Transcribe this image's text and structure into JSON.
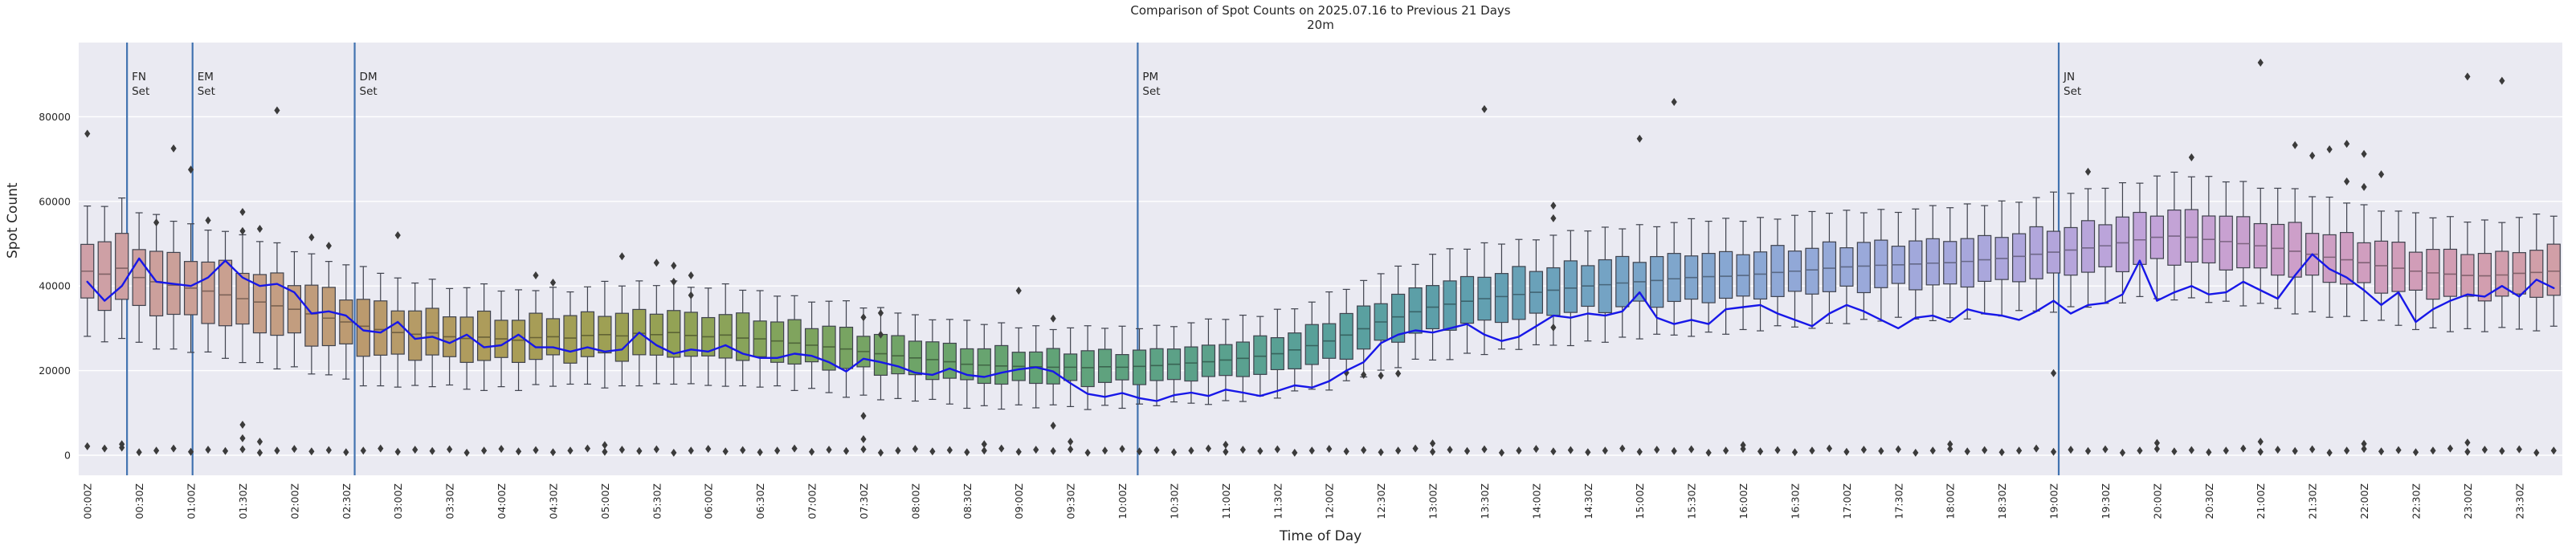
{
  "header": {
    "title": "Comparison of Spot Counts on 2025.07.16 to Previous 21 Days",
    "subtitle": "20m"
  },
  "axes": {
    "y_label": "Spot Count",
    "x_label": "Time of Day",
    "y_tick_labels": [
      "0",
      "20000",
      "40000",
      "60000",
      "80000"
    ],
    "y_tick_values": [
      0,
      20000,
      40000,
      60000,
      80000
    ],
    "x_tick_labels": [
      "00:00Z",
      "00:30Z",
      "01:00Z",
      "01:30Z",
      "02:00Z",
      "02:30Z",
      "03:00Z",
      "03:30Z",
      "04:00Z",
      "04:30Z",
      "05:00Z",
      "05:30Z",
      "06:00Z",
      "06:30Z",
      "07:00Z",
      "07:30Z",
      "08:00Z",
      "08:30Z",
      "09:00Z",
      "09:30Z",
      "10:00Z",
      "10:30Z",
      "11:00Z",
      "11:30Z",
      "12:00Z",
      "12:30Z",
      "13:00Z",
      "13:30Z",
      "14:00Z",
      "14:30Z",
      "15:00Z",
      "15:30Z",
      "16:00Z",
      "16:30Z",
      "17:00Z",
      "17:30Z",
      "18:00Z",
      "18:30Z",
      "19:00Z",
      "19:30Z",
      "20:00Z",
      "20:30Z",
      "21:00Z",
      "21:30Z",
      "22:00Z",
      "22:30Z",
      "23:00Z",
      "23:30Z"
    ]
  },
  "events": [
    {
      "line1": "FN",
      "line2": "Set",
      "slot": 2.3
    },
    {
      "line1": "EM",
      "line2": "Set",
      "slot": 6.1
    },
    {
      "line1": "DM",
      "line2": "Set",
      "slot": 15.5
    },
    {
      "line1": "PM",
      "line2": "Set",
      "slot": 60.9
    },
    {
      "line1": "JN",
      "line2": "Set",
      "slot": 114.3
    }
  ],
  "colors": {
    "figure_bg": "#ffffff",
    "plot_bg": "#eaeaf2",
    "grid": "#ffffff",
    "current_day_line": "#1717e8",
    "event_line": "#4273b0",
    "box_edge": "#3f424d",
    "flier": "#3b3b3b",
    "text": "#262626"
  },
  "chart_data": {
    "type": "boxplot+line",
    "title": "Comparison of Spot Counts on 2025.07.16 to Previous 21 Days",
    "subtitle": "20m",
    "xlabel": "Time of Day",
    "ylabel": "Spot Count",
    "interval_minutes": 10,
    "n_slots": 144,
    "ylim": [
      -5000,
      97500
    ],
    "grid": "horizontal-only",
    "legend": "none",
    "box_fill_palette_stops": [
      [
        0,
        "#cfa0a8"
      ],
      [
        8,
        "#c9a090"
      ],
      [
        16,
        "#bb9a6e"
      ],
      [
        24,
        "#ab9c58"
      ],
      [
        32,
        "#99a153"
      ],
      [
        40,
        "#82a45c"
      ],
      [
        48,
        "#6ea468"
      ],
      [
        56,
        "#61a377"
      ],
      [
        64,
        "#5ba189"
      ],
      [
        72,
        "#58a09b"
      ],
      [
        80,
        "#5f9fae"
      ],
      [
        88,
        "#74a3c4"
      ],
      [
        96,
        "#8aa8d4"
      ],
      [
        104,
        "#9ca9db"
      ],
      [
        112,
        "#aea6dc"
      ],
      [
        120,
        "#c2a3d8"
      ],
      [
        128,
        "#cd9fc9"
      ],
      [
        136,
        "#d29db5"
      ],
      [
        143,
        "#d19fa7"
      ]
    ],
    "current_day_line": [
      41000,
      36500,
      40000,
      46500,
      41000,
      40500,
      40000,
      42000,
      46000,
      42000,
      40000,
      40500,
      38500,
      33500,
      34000,
      33000,
      29500,
      29000,
      31500,
      27500,
      28000,
      26500,
      28500,
      25500,
      26000,
      28500,
      25500,
      25500,
      24500,
      25500,
      24500,
      25000,
      29000,
      26000,
      24000,
      25000,
      24500,
      26000,
      24000,
      23000,
      23000,
      24000,
      23500,
      22000,
      19800,
      22800,
      22000,
      21000,
      19500,
      19000,
      20500,
      19000,
      18500,
      19500,
      20300,
      20800,
      19800,
      17000,
      14500,
      13800,
      14700,
      13500,
      12800,
      14200,
      14800,
      14000,
      15500,
      14800,
      14000,
      15200,
      16500,
      16000,
      17500,
      20000,
      22000,
      26500,
      28500,
      29500,
      29000,
      30000,
      31000,
      28500,
      27000,
      28000,
      30500,
      33000,
      32500,
      33500,
      33000,
      34000,
      38500,
      32500,
      31000,
      32000,
      31000,
      34500,
      35000,
      35500,
      33500,
      32000,
      30500,
      33500,
      35500,
      34000,
      32000,
      30000,
      32500,
      33000,
      31500,
      34500,
      33500,
      33000,
      32000,
      34000,
      36500,
      33500,
      35500,
      36000,
      38000,
      46000,
      36500,
      38500,
      40000,
      38000,
      38500,
      41000,
      39000,
      37000,
      42500,
      47500,
      44000,
      42000,
      39000,
      35500,
      38500,
      31500,
      34500,
      36500,
      38000,
      37500,
      40000,
      37500,
      41500,
      39500
    ],
    "box_median": [
      43500,
      42800,
      44200,
      42000,
      41000,
      40200,
      39500,
      38800,
      37900,
      37000,
      36200,
      35300,
      34500,
      33400,
      32400,
      31500,
      30500,
      29700,
      29000,
      28600,
      28900,
      28000,
      27600,
      27900,
      27500,
      27200,
      27800,
      28000,
      27700,
      28300,
      28500,
      28200,
      28800,
      28500,
      29000,
      28300,
      28000,
      28400,
      27700,
      27500,
      27000,
      26500,
      26000,
      25600,
      25100,
      24500,
      24000,
      23500,
      23000,
      22600,
      22100,
      21500,
      21300,
      21100,
      21000,
      20900,
      20800,
      20800,
      20700,
      20900,
      20800,
      21000,
      21200,
      21500,
      21800,
      22100,
      22500,
      22900,
      23400,
      24000,
      24900,
      25900,
      27000,
      28400,
      29900,
      31500,
      32700,
      33900,
      35000,
      35700,
      36400,
      37000,
      37500,
      38000,
      38500,
      39000,
      39500,
      40000,
      40300,
      40700,
      41000,
      41300,
      41700,
      42000,
      42200,
      42300,
      42500,
      42800,
      43200,
      43500,
      43800,
      44200,
      44500,
      44700,
      44900,
      45000,
      45200,
      45400,
      45500,
      45800,
      46200,
      46500,
      47000,
      47500,
      48000,
      48500,
      49000,
      49500,
      50200,
      50900,
      51500,
      51800,
      51500,
      51000,
      50500,
      50000,
      49500,
      48900,
      48200,
      47500,
      46800,
      46200,
      45500,
      44800,
      44200,
      43500,
      43100,
      42800,
      42500,
      42400,
      42600,
      43000,
      43200,
      43500
    ],
    "box_iqr_half_30m_anchors": [
      7500,
      7200,
      7000,
      6800,
      6500,
      6200,
      5500,
      5200,
      5000,
      5000,
      5200,
      5200,
      5000,
      4800,
      4600,
      4400,
      4200,
      4000,
      3800,
      3700,
      3700,
      3800,
      4000,
      4300,
      4800,
      5200,
      5500,
      5600,
      5600,
      5600,
      5500,
      5500,
      5400,
      5400,
      5300,
      5300,
      5400,
      5500,
      5600,
      5800,
      6000,
      6000,
      5800,
      5600,
      5500,
      5400,
      5300,
      5400
    ],
    "box_whisker_half_30m_anchors": [
      16000,
      15500,
      15000,
      14500,
      14000,
      13500,
      12500,
      12000,
      11500,
      11500,
      12000,
      12000,
      11500,
      11000,
      10800,
      10500,
      10000,
      9800,
      9500,
      9300,
      9300,
      9500,
      9800,
      10300,
      11000,
      11800,
      12500,
      12800,
      13000,
      13200,
      13300,
      13300,
      13200,
      13200,
      13000,
      13000,
      13200,
      13400,
      13600,
      14000,
      14500,
      14500,
      14200,
      13800,
      13500,
      13200,
      13000,
      13200
    ],
    "low_fliers": [
      2100,
      1600,
      1800,
      700,
      1100,
      1600,
      800,
      1300,
      1000,
      1400,
      600,
      1100,
      1500,
      900,
      1200,
      700,
      1100,
      1600,
      800,
      1300,
      1000,
      1400,
      600,
      1100,
      1500,
      900,
      1200,
      700,
      1100,
      1600,
      800,
      1300,
      1000,
      1400,
      600,
      1100,
      1500,
      900,
      1200,
      700,
      1100,
      1600,
      800,
      1300,
      1000,
      1400,
      600,
      1100,
      1500,
      900,
      1200,
      700,
      1100,
      1600,
      800,
      1300,
      1000,
      1400,
      600,
      1100,
      1500,
      900,
      1200,
      700,
      1100,
      1600,
      800,
      1300,
      1000,
      1400,
      600,
      1100,
      1500,
      900,
      1200,
      700,
      1100,
      1600,
      800,
      1300,
      1000,
      1400,
      600,
      1100,
      1500,
      900,
      1200,
      700,
      1100,
      1600,
      800,
      1300,
      1000,
      1400,
      600,
      1100,
      1500,
      900,
      1200,
      700,
      1100,
      1600,
      800,
      1300,
      1000,
      1400,
      600,
      1100,
      1500,
      900,
      1200,
      700,
      1100,
      1600,
      800,
      1300,
      1000,
      1400,
      600,
      1100,
      1500,
      900,
      1200,
      700,
      1100,
      1600,
      800,
      1300,
      1000,
      1400,
      600,
      1100,
      1500,
      900,
      1200,
      700,
      1100,
      1600,
      800,
      1300,
      1000,
      1400,
      600,
      1100
    ],
    "extra_fliers": [
      [
        9,
        7200
      ],
      [
        9,
        4000
      ],
      [
        10,
        3200
      ],
      [
        45,
        9300
      ],
      [
        45,
        3800
      ],
      [
        56,
        7000
      ],
      [
        57,
        3200
      ],
      [
        73,
        19500
      ],
      [
        74,
        19000
      ],
      [
        75,
        18800
      ],
      [
        76,
        19300
      ],
      [
        85,
        30200
      ],
      [
        114,
        19400
      ],
      [
        2,
        2600
      ],
      [
        30,
        2400
      ],
      [
        52,
        2600
      ],
      [
        66,
        2500
      ],
      [
        78,
        2800
      ],
      [
        96,
        2400
      ],
      [
        108,
        2600
      ],
      [
        120,
        2900
      ],
      [
        126,
        3200
      ],
      [
        132,
        2700
      ],
      [
        138,
        3000
      ]
    ],
    "high_fliers": [
      [
        0,
        76000
      ],
      [
        4,
        55000
      ],
      [
        5,
        72500
      ],
      [
        6,
        67500
      ],
      [
        7,
        55500
      ],
      [
        9,
        57500
      ],
      [
        9,
        53000
      ],
      [
        10,
        53500
      ],
      [
        11,
        81500
      ],
      [
        13,
        51500
      ],
      [
        14,
        49500
      ],
      [
        18,
        52000
      ],
      [
        26,
        42500
      ],
      [
        27,
        40800
      ],
      [
        31,
        47000
      ],
      [
        33,
        45500
      ],
      [
        34,
        44800
      ],
      [
        34,
        41000
      ],
      [
        35,
        42500
      ],
      [
        35,
        37800
      ],
      [
        45,
        32600
      ],
      [
        46,
        33600
      ],
      [
        46,
        28500
      ],
      [
        54,
        38900
      ],
      [
        56,
        32300
      ],
      [
        81,
        81800
      ],
      [
        85,
        59000
      ],
      [
        85,
        56000
      ],
      [
        90,
        74800
      ],
      [
        92,
        83500
      ],
      [
        116,
        67000
      ],
      [
        122,
        70400
      ],
      [
        126,
        92800
      ],
      [
        128,
        73300
      ],
      [
        129,
        70800
      ],
      [
        130,
        72300
      ],
      [
        131,
        73600
      ],
      [
        131,
        64700
      ],
      [
        132,
        63400
      ],
      [
        132,
        71200
      ],
      [
        133,
        66400
      ],
      [
        138,
        89500
      ],
      [
        140,
        88500
      ]
    ]
  }
}
